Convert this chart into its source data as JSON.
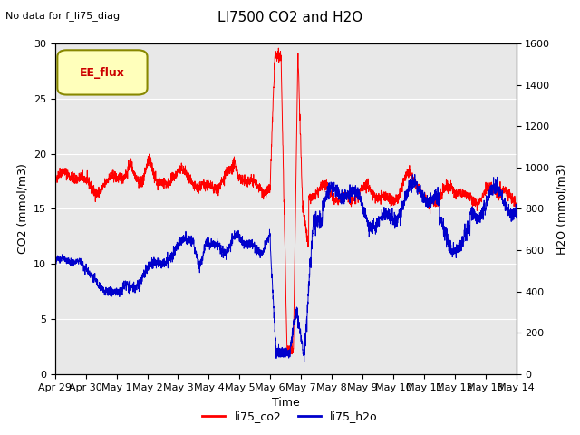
{
  "title": "LI7500 CO2 and H2O",
  "ylabel_left": "CO2 (mmol/m3)",
  "ylabel_right": "H2O (mmol/m3)",
  "xlabel": "Time",
  "annotation_text": "No data for f_li75_diag",
  "legend_box_label": "EE_flux",
  "ylim_left": [
    0,
    30
  ],
  "ylim_right": [
    0,
    1600
  ],
  "background_color": "#e8e8e8",
  "fig_background": "#ffffff",
  "grid_color": "#ffffff",
  "legend_entries": [
    "li75_co2",
    "li75_h2o"
  ],
  "co2_color": "#ff0000",
  "h2o_color": "#0000cc",
  "xtick_labels": [
    "Apr 29",
    "Apr 30",
    "May 1",
    "May 2",
    "May 3",
    "May 4",
    "May 5",
    "May 6",
    "May 7",
    "May 8",
    "May 9",
    "May 10",
    "May 11",
    "May 12",
    "May 13",
    "May 14"
  ],
  "yticks_left": [
    0,
    5,
    10,
    15,
    20,
    25,
    30
  ],
  "yticks_right": [
    0,
    200,
    400,
    600,
    800,
    1000,
    1200,
    1400,
    1600
  ]
}
